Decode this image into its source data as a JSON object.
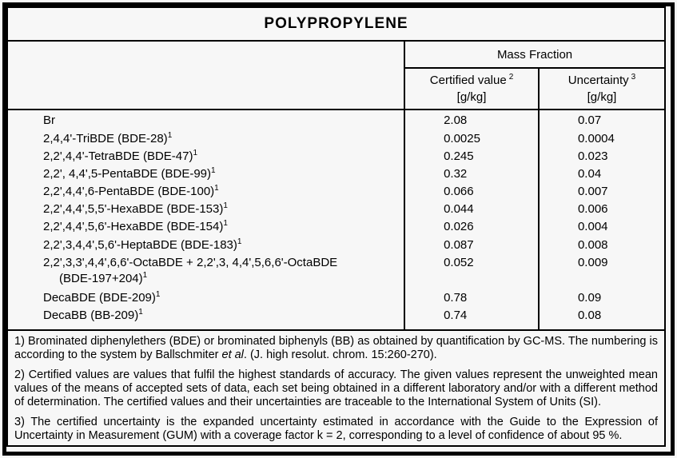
{
  "title": "POLYPROPYLENE",
  "table": {
    "group_header": "Mass Fraction",
    "columns": [
      {
        "label": "Certified value",
        "footnote_ref": "2",
        "unit": "[g/kg]"
      },
      {
        "label": "Uncertainty",
        "footnote_ref": "3",
        "unit": "[g/kg]"
      }
    ],
    "rows": [
      {
        "name": "Br",
        "footnote_ref": "",
        "certified": "2.08",
        "uncertainty": "0.07"
      },
      {
        "name": "2,4,4'-TriBDE (BDE-28)",
        "footnote_ref": "1",
        "certified": "0.0025",
        "uncertainty": "0.0004"
      },
      {
        "name": "2,2',4,4'-TetraBDE (BDE-47)",
        "footnote_ref": "1",
        "certified": "0.245",
        "uncertainty": "0.023"
      },
      {
        "name": "2,2', 4,4',5-PentaBDE (BDE-99)",
        "footnote_ref": "1",
        "certified": "0.32",
        "uncertainty": "0.04"
      },
      {
        "name": "2,2',4,4',6-PentaBDE (BDE-100)",
        "footnote_ref": "1",
        "certified": "0.066",
        "uncertainty": "0.007"
      },
      {
        "name": "2,2',4,4',5,5'-HexaBDE (BDE-153)",
        "footnote_ref": "1",
        "certified": "0.044",
        "uncertainty": "0.006"
      },
      {
        "name": "2,2',4,4',5,6'-HexaBDE (BDE-154)",
        "footnote_ref": "1",
        "certified": "0.026",
        "uncertainty": "0.004"
      },
      {
        "name": "2,2',3,4,4',5,6'-HeptaBDE (BDE-183)",
        "footnote_ref": "1",
        "certified": "0.087",
        "uncertainty": "0.008"
      },
      {
        "name": "2,2',3,3',4,4',6,6'-OctaBDE + 2,2',3, 4,4',5,6,6'-OctaBDE",
        "footnote_ref": "",
        "line2": "(BDE-197+204)",
        "line2_footnote_ref": "1",
        "certified": "0.052",
        "uncertainty": "0.009"
      },
      {
        "name": "DecaBDE (BDE-209)",
        "footnote_ref": "1",
        "certified": "0.78",
        "uncertainty": "0.09"
      },
      {
        "name": "DecaBB (BB-209)",
        "footnote_ref": "1",
        "certified": "0.74",
        "uncertainty": "0.08"
      }
    ]
  },
  "footnotes": [
    [
      {
        "text": "1) Brominated diphenylethers (BDE) or brominated biphenyls (BB) as obtained by quantification by GC-MS. The numbering is according to the system by Ballschmiter ",
        "italic": false
      },
      {
        "text": "et al",
        "italic": true
      },
      {
        "text": ". (J. high resolut. chrom. 15:260-270).",
        "italic": false
      }
    ],
    [
      {
        "text": "2) Certified values are values that fulfil the highest standards of accuracy. The given values represent the unweighted mean values of the means of accepted sets of data, each set being obtained in a different laboratory and/or with a different method of determination. The certified values and their uncertainties are traceable to the International System of Units (SI).",
        "italic": false
      }
    ],
    [
      {
        "text": "3) The certified uncertainty is the expanded uncertainty estimated in accordance with the Guide to the Expression of Uncertainty in Measurement (GUM) with a coverage factor k = 2, corresponding to a level of confidence of about 95 %.",
        "italic": false
      }
    ]
  ]
}
